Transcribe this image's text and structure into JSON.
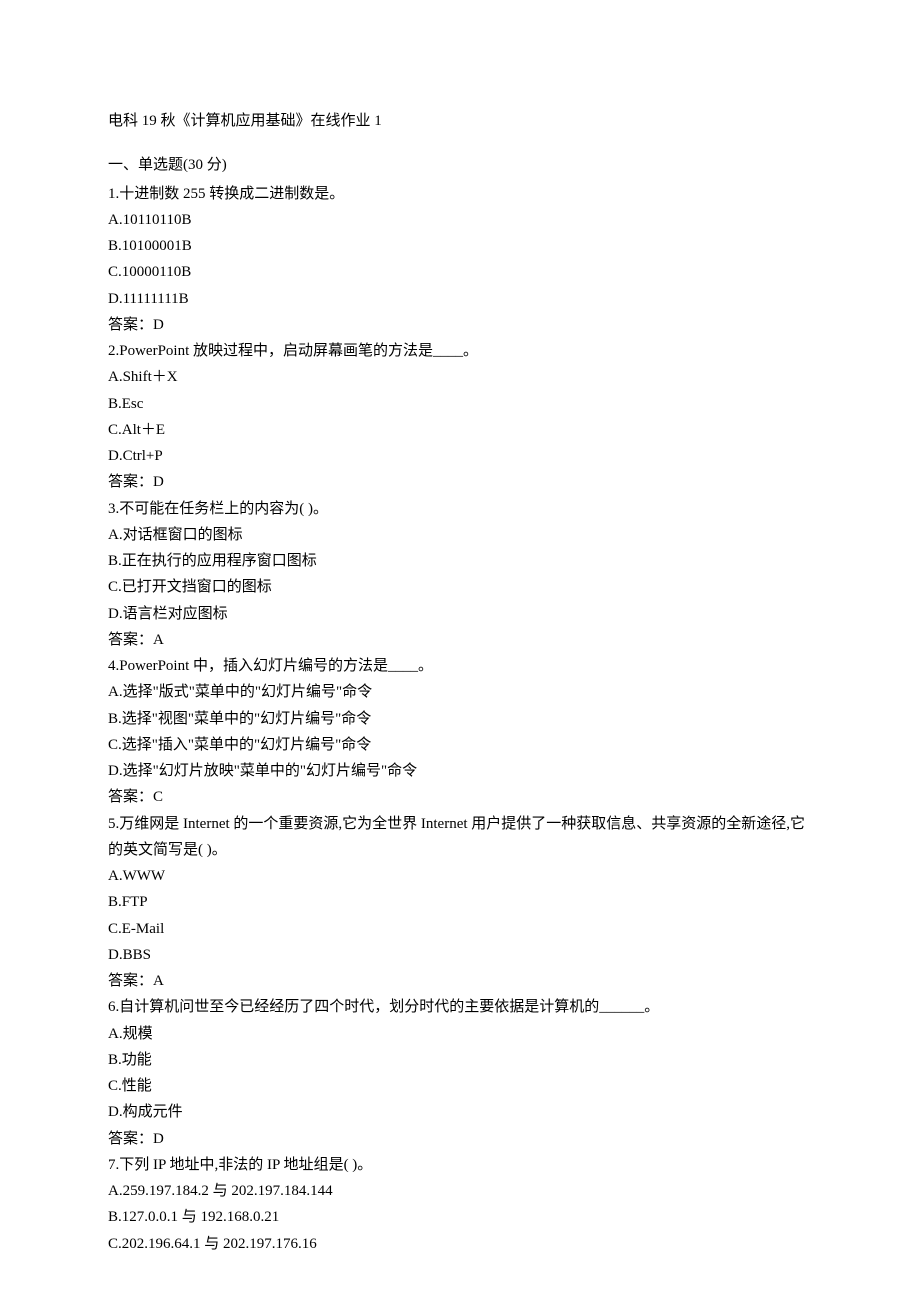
{
  "title": "电科 19 秋《计算机应用基础》在线作业 1",
  "section_header": "一、单选题(30 分)",
  "answer_prefix": "答案：",
  "questions": [
    {
      "num": "1",
      "text": ".十进制数 255 转换成二进制数是。",
      "options": [
        "A.10110110B",
        "B.10100001B",
        "C.10000110B",
        "D.11111111B"
      ],
      "answer": "D"
    },
    {
      "num": "2",
      "text": ".PowerPoint 放映过程中，启动屏幕画笔的方法是____。",
      "options": [
        "A.Shift＋X",
        "B.Esc",
        "C.Alt＋E",
        "D.Ctrl+P"
      ],
      "answer": "D"
    },
    {
      "num": "3",
      "text": ".不可能在任务栏上的内容为(   )。",
      "options": [
        "A.对话框窗口的图标",
        "B.正在执行的应用程序窗口图标",
        "C.已打开文挡窗口的图标",
        "D.语言栏对应图标"
      ],
      "answer": "A"
    },
    {
      "num": "4",
      "text": ".PowerPoint 中，插入幻灯片编号的方法是____。",
      "options": [
        "A.选择\"版式\"菜单中的\"幻灯片编号\"命令",
        "B.选择\"视图\"菜单中的\"幻灯片编号\"命令",
        "C.选择\"插入\"菜单中的\"幻灯片编号\"命令",
        "D.选择\"幻灯片放映\"菜单中的\"幻灯片编号\"命令"
      ],
      "answer": "C"
    },
    {
      "num": "5",
      "text": ".万维网是 Internet 的一个重要资源,它为全世界 Internet 用户提供了一种获取信息、共享资源的全新途径,它的英文简写是(   )。",
      "options": [
        "A.WWW",
        "B.FTP",
        "C.E-Mail",
        "D.BBS"
      ],
      "answer": "A"
    },
    {
      "num": "6",
      "text": ".自计算机问世至今已经经历了四个时代，划分时代的主要依据是计算机的______。",
      "options": [
        "A.规模",
        "B.功能",
        "C.性能",
        "D.构成元件"
      ],
      "answer": "D"
    },
    {
      "num": "7",
      "text": ".下列 IP 地址中,非法的 IP 地址组是(         )。",
      "options": [
        "A.259.197.184.2 与 202.197.184.144",
        "B.127.0.0.1 与 192.168.0.21",
        "C.202.196.64.1 与 202.197.176.16"
      ],
      "answer": null
    }
  ]
}
